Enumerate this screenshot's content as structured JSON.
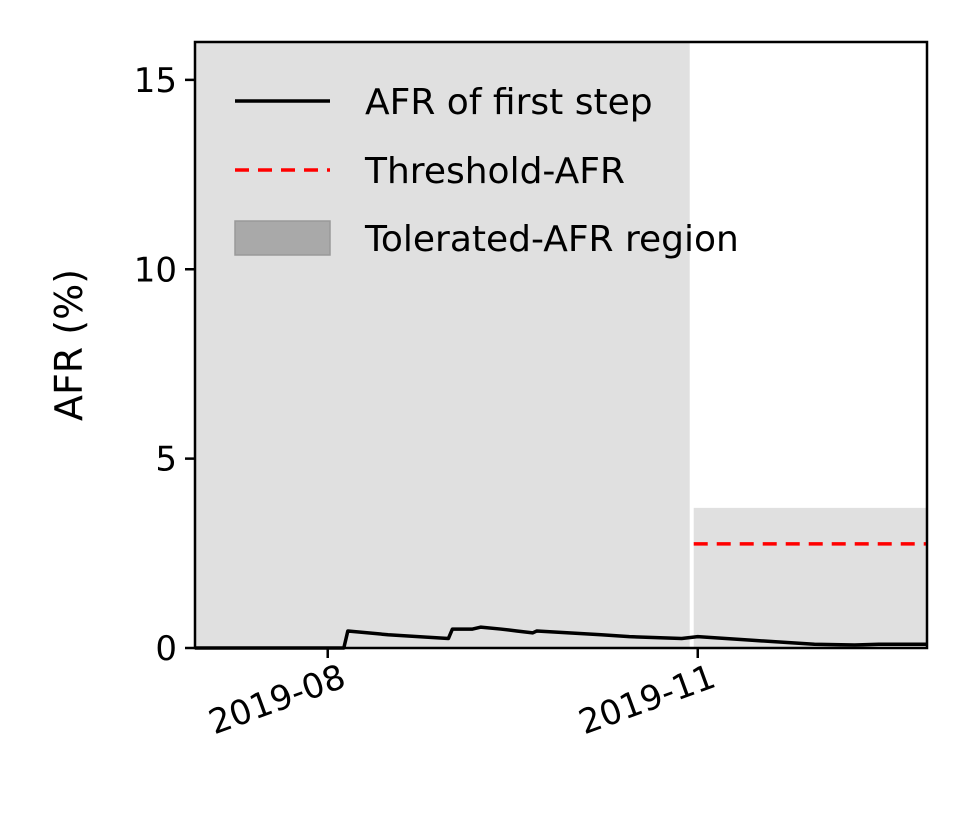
{
  "chart_data": {
    "type": "line",
    "title": "",
    "xlabel": "",
    "ylabel": "AFR (%)",
    "x_ticks": [
      "2019-08",
      "2019-11"
    ],
    "y_ticks": [
      "0",
      "5",
      "10",
      "15"
    ],
    "xlim": [
      "2019-06-29",
      "2019-12-28"
    ],
    "ylim": [
      0,
      16
    ],
    "grid": false,
    "legend_position": "top-left",
    "legend": [
      {
        "label": "AFR of first step",
        "style": "solid-line",
        "color": "#000000"
      },
      {
        "label": "Threshold-AFR",
        "style": "dashed-line",
        "color": "#ff0000"
      },
      {
        "label": "Tolerated-AFR region",
        "style": "patch",
        "color": "#a9a9a9"
      }
    ],
    "series": [
      {
        "name": "AFR of first step",
        "color": "#000000",
        "points": [
          {
            "x": "2019-06-29",
            "y": 0.0
          },
          {
            "x": "2019-08-05",
            "y": 0.0
          },
          {
            "x": "2019-08-06",
            "y": 0.45
          },
          {
            "x": "2019-08-16",
            "y": 0.35
          },
          {
            "x": "2019-08-31",
            "y": 0.25
          },
          {
            "x": "2019-09-01",
            "y": 0.5
          },
          {
            "x": "2019-09-06",
            "y": 0.5
          },
          {
            "x": "2019-09-08",
            "y": 0.55
          },
          {
            "x": "2019-09-13",
            "y": 0.5
          },
          {
            "x": "2019-09-17",
            "y": 0.45
          },
          {
            "x": "2019-09-21",
            "y": 0.4
          },
          {
            "x": "2019-09-22",
            "y": 0.45
          },
          {
            "x": "2019-09-30",
            "y": 0.4
          },
          {
            "x": "2019-10-08",
            "y": 0.35
          },
          {
            "x": "2019-10-15",
            "y": 0.3
          },
          {
            "x": "2019-10-20",
            "y": 0.28
          },
          {
            "x": "2019-10-28",
            "y": 0.25
          },
          {
            "x": "2019-11-01",
            "y": 0.3
          },
          {
            "x": "2019-11-15",
            "y": 0.2
          },
          {
            "x": "2019-11-30",
            "y": 0.1
          },
          {
            "x": "2019-12-10",
            "y": 0.08
          },
          {
            "x": "2019-12-16",
            "y": 0.1
          },
          {
            "x": "2019-12-28",
            "y": 0.1
          }
        ]
      }
    ],
    "threshold": {
      "name": "Threshold-AFR",
      "color": "#ff0000",
      "x_start": "2019-10-31",
      "x_end": "2019-12-28",
      "y": 2.75
    },
    "tolerated_regions": [
      {
        "name": "Tolerated-AFR region",
        "color": "#e0e0e0",
        "x_start": "2019-06-29",
        "x_end": "2019-10-30",
        "y_low": 0,
        "y_high": 16
      },
      {
        "name": "Tolerated-AFR region",
        "color": "#e0e0e0",
        "x_start": "2019-10-31",
        "x_end": "2019-12-28",
        "y_low": 0,
        "y_high": 3.7
      }
    ]
  }
}
